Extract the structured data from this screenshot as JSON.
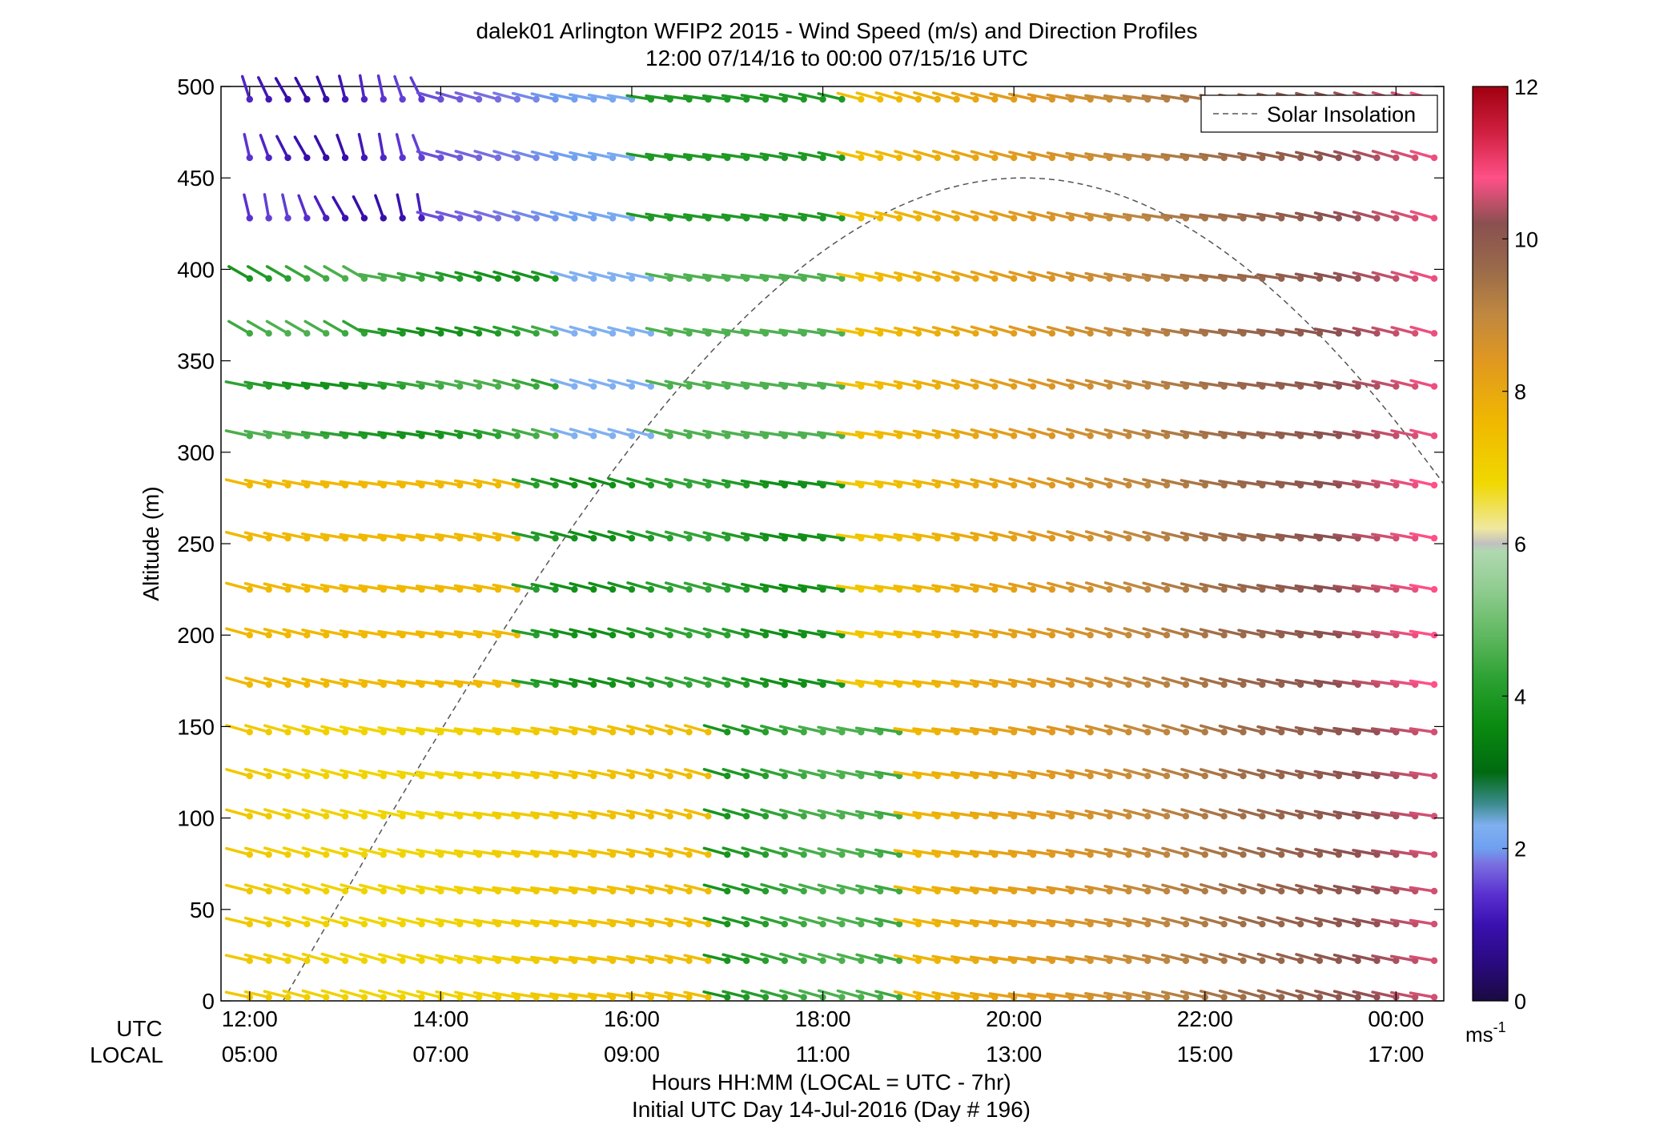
{
  "title": {
    "line1": "dalek01 Arlington WFIP2 2015 - Wind Speed (m/s) and Direction Profiles",
    "line2": "12:00 07/14/16 to 00:00 07/15/16  UTC"
  },
  "axes": {
    "ylabel": "Altitude (m)",
    "xlabel": "Hours HH:MM  (LOCAL = UTC - 7hr)",
    "xlabel2": "Initial UTC Day 14-Jul-2016 (Day # 196)",
    "utc_row_label": "UTC",
    "local_row_label": "LOCAL",
    "utc_ticks": [
      "12:00",
      "14:00",
      "16:00",
      "18:00",
      "20:00",
      "22:00",
      "00:00"
    ],
    "local_ticks": [
      "05:00",
      "07:00",
      "09:00",
      "11:00",
      "13:00",
      "15:00",
      "17:00"
    ],
    "y_ticks": [
      "0",
      "50",
      "100",
      "150",
      "200",
      "250",
      "300",
      "350",
      "400",
      "450",
      "500"
    ]
  },
  "legend": {
    "solar_label": "Solar Insolation"
  },
  "colorbar": {
    "ticks": [
      "0",
      "2",
      "4",
      "6",
      "8",
      "10",
      "12"
    ],
    "unit_base": "ms",
    "unit_exp": "-1"
  },
  "chart_data": {
    "type": "wind-barb-profile",
    "x_unit": "hours UTC from 12:00 07/14/16",
    "x_range": [
      -0.3,
      12.5
    ],
    "ylim": [
      0,
      500
    ],
    "speed_range": [
      0,
      12
    ],
    "altitudes": [
      2,
      22,
      42,
      60,
      80,
      101,
      123,
      147,
      173,
      200,
      225,
      253,
      282,
      309,
      336,
      365,
      395,
      428,
      461,
      493
    ],
    "time_start": 0.0,
    "time_step": 0.2,
    "time_count": 63,
    "speed_profile": {
      "comment": "speed(t) approximated piecewise per altitude; values in m/s",
      "low_altitudes_max": 150,
      "high_altitude_min": 400
    },
    "solar_insolation_curve": {
      "peak_time_utc_hours": 8.1,
      "peak_altitude_equiv": 450,
      "zero_crossing_hours": 0.35
    },
    "legend_position": "top-right",
    "grid": false
  },
  "colors": {
    "colormap": [
      [
        0.0,
        "#1a0a40"
      ],
      [
        0.5,
        "#2a0a80"
      ],
      [
        1.0,
        "#3a10b0"
      ],
      [
        1.4,
        "#5a30d0"
      ],
      [
        1.8,
        "#7a70e0"
      ],
      [
        2.0,
        "#6fa0f0"
      ],
      [
        2.3,
        "#80b0f0"
      ],
      [
        2.6,
        "#3a8a8a"
      ],
      [
        3.0,
        "#006a10"
      ],
      [
        3.6,
        "#0a8a10"
      ],
      [
        4.2,
        "#2aa030"
      ],
      [
        4.8,
        "#60b860"
      ],
      [
        5.4,
        "#90cc90"
      ],
      [
        5.9,
        "#b0d8b0"
      ],
      [
        6.0,
        "#c0c0c0"
      ],
      [
        6.2,
        "#f0e8a0"
      ],
      [
        6.8,
        "#f0d800"
      ],
      [
        7.6,
        "#f0b800"
      ],
      [
        8.4,
        "#e09820"
      ],
      [
        9.0,
        "#c08840"
      ],
      [
        9.6,
        "#9a6a4a"
      ],
      [
        10.2,
        "#8a5050"
      ],
      [
        10.8,
        "#ff5088"
      ],
      [
        11.4,
        "#d02040"
      ],
      [
        12.0,
        "#a00010"
      ]
    ],
    "solar_line": "#555555"
  }
}
